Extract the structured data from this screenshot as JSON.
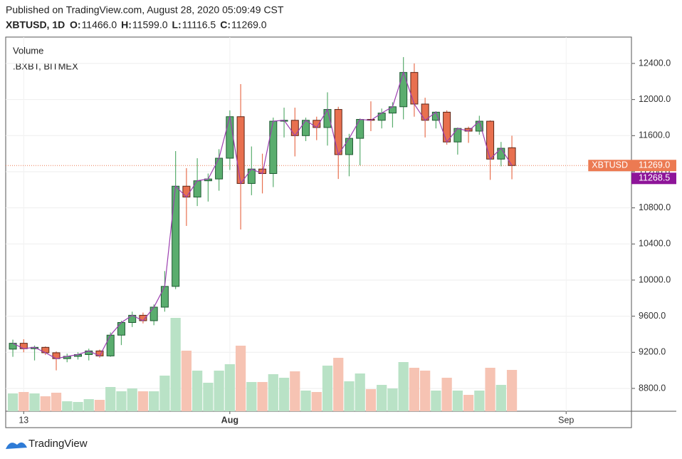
{
  "header": {
    "published": "Published on TradingView.com, August 28, 2020 05:09:49 CST",
    "symbol": "XBTUSD, 1D",
    "ohlc": [
      {
        "key": "O:",
        "value": "11466.0"
      },
      {
        "key": "H:",
        "value": "11599.0"
      },
      {
        "key": "L:",
        "value": "11116.5"
      },
      {
        "key": "C:",
        "value": "11269.0"
      }
    ]
  },
  "legend": [
    "Volume",
    ".BXBT, BITMEX"
  ],
  "footer": "TradingView",
  "chart_data": {
    "type": "candlestick",
    "ylim": [
      8547,
      12692
    ],
    "yticks": [
      {
        "value": 8800,
        "label": "8800.0"
      },
      {
        "value": 9200,
        "label": "9200.0"
      },
      {
        "value": 9600,
        "label": "9600.0"
      },
      {
        "value": 10000,
        "label": "10000.0"
      },
      {
        "value": 10400,
        "label": "10400.0"
      },
      {
        "value": 10800,
        "label": "10800.0"
      },
      {
        "value": 11200,
        "label": "11200.0"
      },
      {
        "value": 11600,
        "label": "11600.0"
      },
      {
        "value": 12000,
        "label": "12000.0"
      },
      {
        "value": 12400,
        "label": "12400.0"
      }
    ],
    "xlim": [
      -0.66,
      57.02
    ],
    "xticks": [
      {
        "value": 1,
        "label": "13"
      },
      {
        "value": 20,
        "label": "Aug"
      },
      {
        "value": 51,
        "label": "Sep"
      }
    ],
    "up_color": "#5aad6e",
    "down_color": "#e8704f",
    "up_volume_color": "#b9e2c6",
    "down_volume_color": "#f6c3b3",
    "line_color": "#9c3fb0",
    "open": [
      9235,
      9300,
      9240,
      9255,
      9195,
      9130,
      9155,
      9175,
      9215,
      9160,
      9390,
      9530,
      9610,
      9550,
      9700,
      9930,
      11040,
      10920,
      11100,
      11120,
      11350,
      11810,
      11070,
      11230,
      11180,
      11760,
      11770,
      11600,
      11770,
      11690,
      11890,
      11390,
      11570,
      11780,
      11770,
      11850,
      11920,
      12300,
      11950,
      11770,
      11860,
      11530,
      11680,
      11650,
      11760,
      11340,
      11466
    ],
    "high": [
      9340,
      9345,
      9275,
      9265,
      9210,
      9185,
      9200,
      9240,
      9230,
      9420,
      9550,
      9650,
      9640,
      9730,
      10100,
      11429,
      11240,
      11350,
      11180,
      11450,
      11880,
      12171,
      11480,
      11400,
      11800,
      11910,
      11910,
      11800,
      11810,
      12080,
      11920,
      11620,
      11790,
      11980,
      11900,
      11970,
      12470,
      12400,
      12020,
      11870,
      11880,
      11690,
      11700,
      11820,
      11770,
      11530,
      11599
    ],
    "low": [
      9150,
      9200,
      9110,
      9170,
      9000,
      9090,
      9120,
      9110,
      9140,
      9150,
      9280,
      9480,
      9520,
      9500,
      9650,
      9900,
      10600,
      10820,
      10870,
      10990,
      11220,
      10560,
      10940,
      10960,
      11030,
      11580,
      11370,
      11540,
      11550,
      11490,
      11120,
      11150,
      11270,
      11650,
      11680,
      11690,
      11780,
      11810,
      11580,
      11680,
      11500,
      11390,
      11520,
      11610,
      11110,
      11260,
      11116.5
    ],
    "close": [
      9300,
      9240,
      9255,
      9195,
      9130,
      9155,
      9175,
      9215,
      9160,
      9390,
      9530,
      9610,
      9550,
      9700,
      9930,
      11040,
      10920,
      11100,
      11120,
      11350,
      11810,
      11070,
      11230,
      11180,
      11760,
      11770,
      11600,
      11770,
      11690,
      11890,
      11390,
      11570,
      11780,
      11770,
      11850,
      11920,
      12300,
      11950,
      11770,
      11860,
      11530,
      11680,
      11650,
      11760,
      11340,
      11460,
      11269
    ],
    "volume": [
      25,
      27,
      25,
      21,
      26,
      14,
      13,
      17,
      16,
      34,
      28,
      32,
      28,
      28,
      50,
      131,
      85,
      57,
      40,
      57,
      66,
      92,
      41,
      41,
      52,
      47,
      56,
      29,
      27,
      64,
      75,
      42,
      53,
      31,
      37,
      32,
      69,
      61,
      57,
      29,
      47,
      29,
      23,
      29,
      61,
      37,
      58
    ],
    "last_price": {
      "name": "XBTUSD",
      "value": 11269,
      "label": "11269.0",
      "color": "#ec7a52"
    },
    "index_price": {
      "value": 11268.5,
      "label": "11268.5",
      "color": "#8e1599"
    }
  }
}
